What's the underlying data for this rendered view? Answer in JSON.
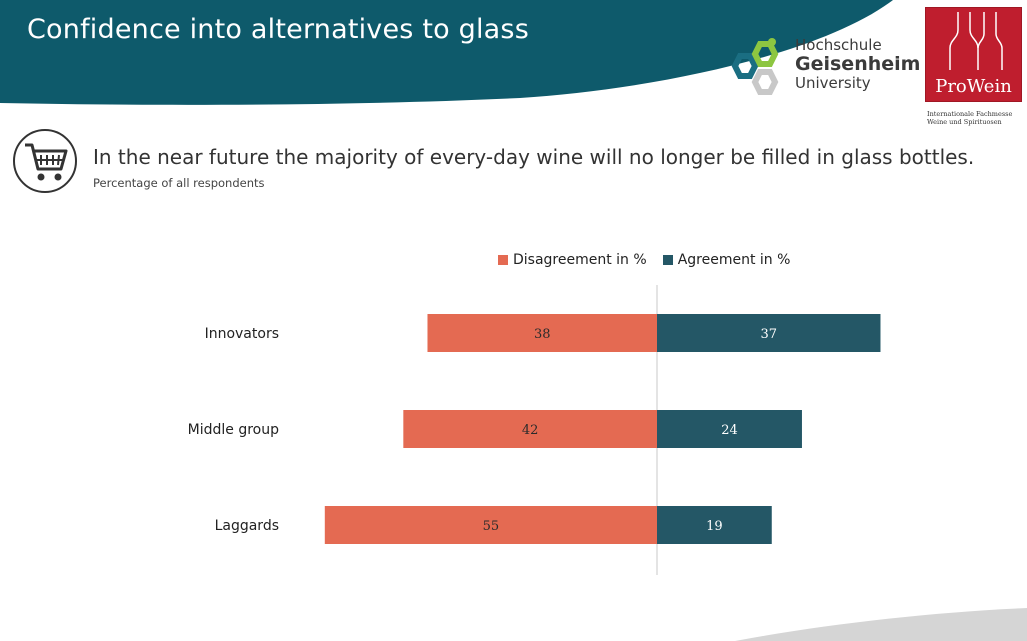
{
  "header": {
    "title": "Confidence into alternatives to glass",
    "bg_color": "#0e5a6b"
  },
  "logos": {
    "hochschule": {
      "line1": "Hochschule",
      "line2": "Geisenheim",
      "line3": "University"
    },
    "prowein": {
      "name": "ProWein",
      "sub_line1": "Internationale Fachmesse",
      "sub_line2": "Weine und Spirituosen",
      "color": "#bf1e2e"
    }
  },
  "question": {
    "icon": "shopping-cart-icon",
    "text": "In the near future the majority of every-day wine will no longer be filled in glass bottles.",
    "subtitle": "Percentage of all respondents"
  },
  "chart_data": {
    "type": "bar",
    "orientation": "horizontal-diverging",
    "categories": [
      "Innovators",
      "Middle group",
      "Laggards"
    ],
    "series": [
      {
        "name": "Disagreement in %",
        "values": [
          38,
          42,
          55
        ],
        "color": "#e46a52",
        "direction": "left"
      },
      {
        "name": "Agreement in %",
        "values": [
          37,
          24,
          19
        ],
        "color": "#245766",
        "direction": "right"
      }
    ],
    "legend_position": "top",
    "grid": false,
    "data_labels": true
  }
}
